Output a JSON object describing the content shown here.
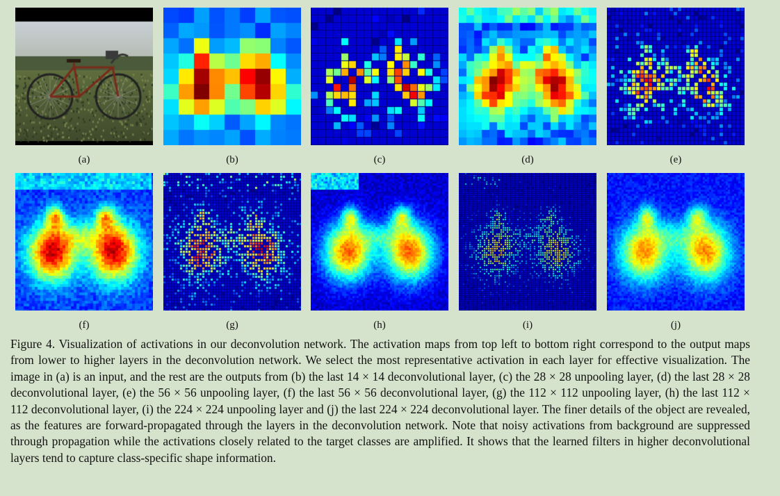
{
  "panels": [
    {
      "id": "a",
      "label": "(a)",
      "kind": "photo"
    },
    {
      "id": "b",
      "label": "(b)",
      "kind": "heat"
    },
    {
      "id": "c",
      "label": "(c)",
      "kind": "heat"
    },
    {
      "id": "d",
      "label": "(d)",
      "kind": "heat"
    },
    {
      "id": "e",
      "label": "(e)",
      "kind": "heat"
    },
    {
      "id": "f",
      "label": "(f)",
      "kind": "heat"
    },
    {
      "id": "g",
      "label": "(g)",
      "kind": "heat"
    },
    {
      "id": "h",
      "label": "(h)",
      "kind": "heat"
    },
    {
      "id": "i",
      "label": "(i)",
      "kind": "heat"
    },
    {
      "id": "j",
      "label": "(j)",
      "kind": "heat"
    }
  ],
  "caption": {
    "prefix": "Figure 4.",
    "text": "Visualization of activations in our deconvolution network. The activation maps from top left to bottom right correspond to the output maps from lower to higher layers in the deconvolution network. We select the most representative activation in each layer for effective visualization. The image in (a) is an input, and the rest are the outputs from (b) the last 14 × 14 deconvolutional layer, (c) the 28 × 28 unpooling layer, (d) the last 28 × 28 deconvolutional layer, (e) the 56 × 56 unpooling layer, (f) the last 56 × 56 deconvolutional layer, (g) the 112 × 112 unpooling layer, (h) the last 112 × 112 deconvolutional layer, (i) the 224 × 224 unpooling layer and (j) the last 224 × 224 deconvolutional layer. The finer details of the object are revealed, as the features are forward-propagated through the layers in the deconvolution network. Note that noisy activations from background are suppressed through propagation while the activations closely related to the target classes are amplified. It shows that the learned filters in higher deconvolutional layers tend to capture class-specific shape information."
  }
}
